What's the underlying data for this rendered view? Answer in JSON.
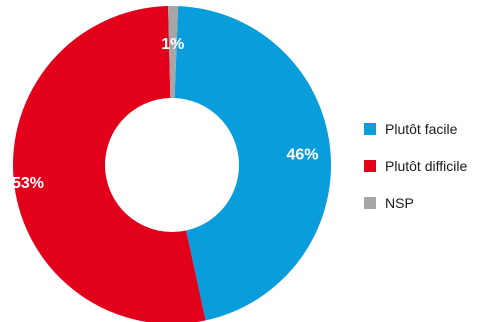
{
  "chart_data": {
    "type": "pie",
    "variant": "donut",
    "title": "",
    "slices": [
      {
        "label": "Plutôt facile",
        "value": 46,
        "display": "46%",
        "color": "#0a9ddb"
      },
      {
        "label": "Plutôt difficile",
        "value": 53,
        "display": "53%",
        "color": "#e3001b"
      },
      {
        "label": "NSP",
        "value": 1,
        "display": "1%",
        "color": "#a6a6a6"
      }
    ],
    "legend_position": "right"
  }
}
